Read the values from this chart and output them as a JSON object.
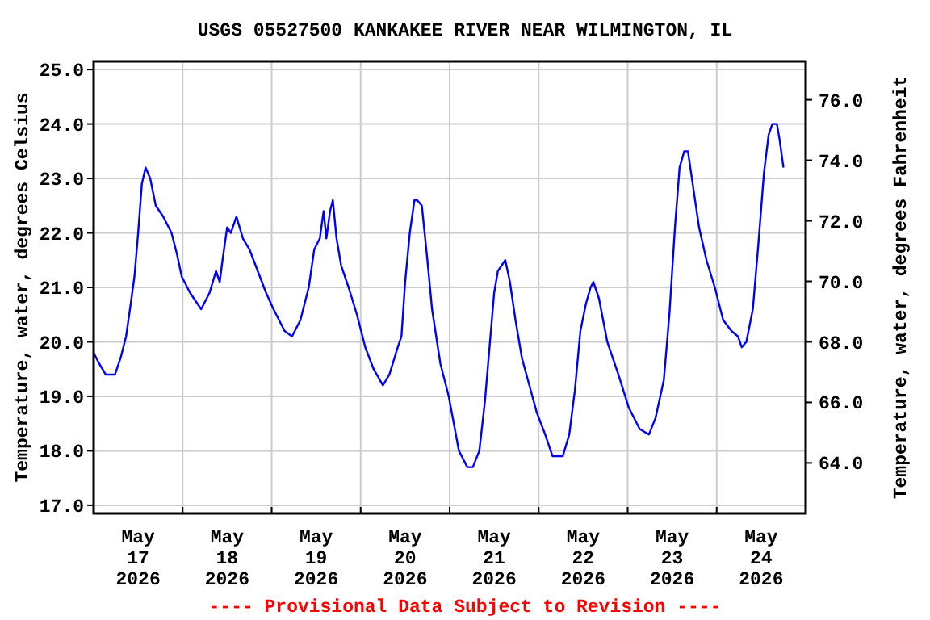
{
  "chart_data": {
    "type": "line",
    "title": "USGS 05527500 KANKAKEE RIVER NEAR WILMINGTON, IL",
    "ylabel": "Temperature, water, degrees Celsius",
    "y2label": "Temperature, water, degrees Fahrenheit",
    "annotations": [
      "---- Provisional Data Subject to Revision ----"
    ],
    "xlim": [
      "2026-05-17T00:00",
      "2026-05-25T00:00"
    ],
    "xticks": [
      {
        "value": "2026-05-17T12:00",
        "label": "May 17 2026"
      },
      {
        "value": "2026-05-18T12:00",
        "label": "May 18 2026"
      },
      {
        "value": "2026-05-19T12:00",
        "label": "May 19 2026"
      },
      {
        "value": "2026-05-20T12:00",
        "label": "May 20 2026"
      },
      {
        "value": "2026-05-21T12:00",
        "label": "May 21 2026"
      },
      {
        "value": "2026-05-22T12:00",
        "label": "May 22 2026"
      },
      {
        "value": "2026-05-23T12:00",
        "label": "May 23 2026"
      },
      {
        "value": "2026-05-24T12:00",
        "label": "May 24 2026"
      },
      {
        "value": "2026-05-18T00:00",
        "label": null
      },
      {
        "value": "2026-05-19T00:00",
        "label": null
      },
      {
        "value": "2026-05-20T00:00",
        "label": null
      },
      {
        "value": "2026-05-21T00:00",
        "label": null
      },
      {
        "value": "2026-05-22T00:00",
        "label": null
      },
      {
        "value": "2026-05-23T00:00",
        "label": null
      },
      {
        "value": "2026-05-24T00:00",
        "label": null
      }
    ],
    "ylim": [
      16.85,
      25.15
    ],
    "yticks": [
      {
        "value": 17,
        "label": "17.0"
      },
      {
        "value": 18,
        "label": "18.0"
      },
      {
        "value": 19,
        "label": "19.0"
      },
      {
        "value": 20,
        "label": "20.0"
      },
      {
        "value": 21,
        "label": "21.0"
      },
      {
        "value": 22,
        "label": "22.0"
      },
      {
        "value": 23,
        "label": "23.0"
      },
      {
        "value": 24,
        "label": "24.0"
      },
      {
        "value": 25,
        "label": "25.0"
      }
    ],
    "y2lim": [
      62.33,
      77.27
    ],
    "y2ticks": [
      {
        "value": 64,
        "label": "64.0"
      },
      {
        "value": 66,
        "label": "66.0"
      },
      {
        "value": 68,
        "label": "68.0"
      },
      {
        "value": 70,
        "label": "70.0"
      },
      {
        "value": 72,
        "label": "72.0"
      },
      {
        "value": 74,
        "label": "74.0"
      },
      {
        "value": 76,
        "label": "76.0"
      }
    ],
    "grid": true,
    "marker": "none",
    "line_style": "solid",
    "series": [
      {
        "color": "#0000ff",
        "x": [
          "2026-05-17T00:00",
          "2026-05-17T01:30",
          "2026-05-17T03:15",
          "2026-05-17T05:45",
          "2026-05-17T07:15",
          "2026-05-17T08:45",
          "2026-05-17T10:00",
          "2026-05-17T11:00",
          "2026-05-17T12:00",
          "2026-05-17T13:00",
          "2026-05-17T14:00",
          "2026-05-17T15:15",
          "2026-05-17T16:45",
          "2026-05-17T18:45",
          "2026-05-17T21:00",
          "2026-05-17T22:30",
          "2026-05-17T23:45",
          "2026-05-18T02:00",
          "2026-05-18T05:00",
          "2026-05-18T07:15",
          "2026-05-18T09:00",
          "2026-05-18T10:00",
          "2026-05-18T10:45",
          "2026-05-18T12:00",
          "2026-05-18T13:00",
          "2026-05-18T14:30",
          "2026-05-18T16:15",
          "2026-05-18T18:00",
          "2026-05-18T20:15",
          "2026-05-18T22:30",
          "2026-05-19T00:30",
          "2026-05-19T03:30",
          "2026-05-19T05:30",
          "2026-05-19T07:45",
          "2026-05-19T10:00",
          "2026-05-19T11:30",
          "2026-05-19T13:00",
          "2026-05-19T14:00",
          "2026-05-19T14:45",
          "2026-05-19T15:45",
          "2026-05-19T16:30",
          "2026-05-19T17:30",
          "2026-05-19T18:45",
          "2026-05-19T20:45",
          "2026-05-19T23:00",
          "2026-05-20T01:15",
          "2026-05-20T03:30",
          "2026-05-20T06:00",
          "2026-05-20T07:45",
          "2026-05-20T10:00",
          "2026-05-20T11:00",
          "2026-05-20T12:00",
          "2026-05-20T13:15",
          "2026-05-20T14:30",
          "2026-05-20T15:15",
          "2026-05-20T16:30",
          "2026-05-20T18:00",
          "2026-05-20T19:15",
          "2026-05-20T21:30",
          "2026-05-20T23:45",
          "2026-05-21T02:30",
          "2026-05-21T04:45",
          "2026-05-21T06:15",
          "2026-05-21T08:00",
          "2026-05-21T09:30",
          "2026-05-21T11:00",
          "2026-05-21T12:00",
          "2026-05-21T13:00",
          "2026-05-21T14:00",
          "2026-05-21T15:00",
          "2026-05-21T16:15",
          "2026-05-21T17:45",
          "2026-05-21T19:30",
          "2026-05-21T21:30",
          "2026-05-21T23:30",
          "2026-05-22T01:45",
          "2026-05-22T03:45",
          "2026-05-22T06:30",
          "2026-05-22T08:15",
          "2026-05-22T09:45",
          "2026-05-22T11:15",
          "2026-05-22T12:45",
          "2026-05-22T14:00",
          "2026-05-22T14:45",
          "2026-05-22T16:15",
          "2026-05-22T18:30",
          "2026-05-22T21:30",
          "2026-05-23T00:15",
          "2026-05-23T03:15",
          "2026-05-23T05:45",
          "2026-05-23T07:30",
          "2026-05-23T09:45",
          "2026-05-23T11:15",
          "2026-05-23T12:45",
          "2026-05-23T14:00",
          "2026-05-23T15:15",
          "2026-05-23T16:15",
          "2026-05-23T17:45",
          "2026-05-23T19:15",
          "2026-05-23T21:15",
          "2026-05-23T23:30",
          "2026-05-24T01:45",
          "2026-05-24T04:00",
          "2026-05-24T05:45",
          "2026-05-24T06:45",
          "2026-05-24T08:00",
          "2026-05-24T09:45",
          "2026-05-24T11:15",
          "2026-05-24T12:45",
          "2026-05-24T14:00",
          "2026-05-24T15:00",
          "2026-05-24T16:15",
          "2026-05-24T17:00",
          "2026-05-24T18:00"
        ],
        "values": [
          19.8,
          19.6,
          19.4,
          19.4,
          19.7,
          20.1,
          20.7,
          21.2,
          22.0,
          22.9,
          23.2,
          23.0,
          22.5,
          22.3,
          22.0,
          21.6,
          21.2,
          20.9,
          20.6,
          20.9,
          21.3,
          21.1,
          21.5,
          22.1,
          22.0,
          22.3,
          21.9,
          21.7,
          21.3,
          20.9,
          20.6,
          20.2,
          20.1,
          20.4,
          21.0,
          21.7,
          21.9,
          22.4,
          21.9,
          22.4,
          22.6,
          21.9,
          21.4,
          21.0,
          20.5,
          19.9,
          19.5,
          19.2,
          19.4,
          19.9,
          20.1,
          21.1,
          22.0,
          22.6,
          22.6,
          22.5,
          21.5,
          20.6,
          19.6,
          19.0,
          18.0,
          17.7,
          17.7,
          18.0,
          18.9,
          20.1,
          20.9,
          21.3,
          21.4,
          21.5,
          21.1,
          20.4,
          19.7,
          19.2,
          18.7,
          18.3,
          17.9,
          17.9,
          18.3,
          19.1,
          20.2,
          20.7,
          21.0,
          21.1,
          20.8,
          20.0,
          19.4,
          18.8,
          18.4,
          18.3,
          18.6,
          19.3,
          20.5,
          22.1,
          23.2,
          23.5,
          23.5,
          22.8,
          22.1,
          21.5,
          21.0,
          20.4,
          20.2,
          20.1,
          19.9,
          20.0,
          20.6,
          21.8,
          23.1,
          23.8,
          24.0,
          24.0,
          23.7,
          23.2
        ]
      }
    ]
  }
}
